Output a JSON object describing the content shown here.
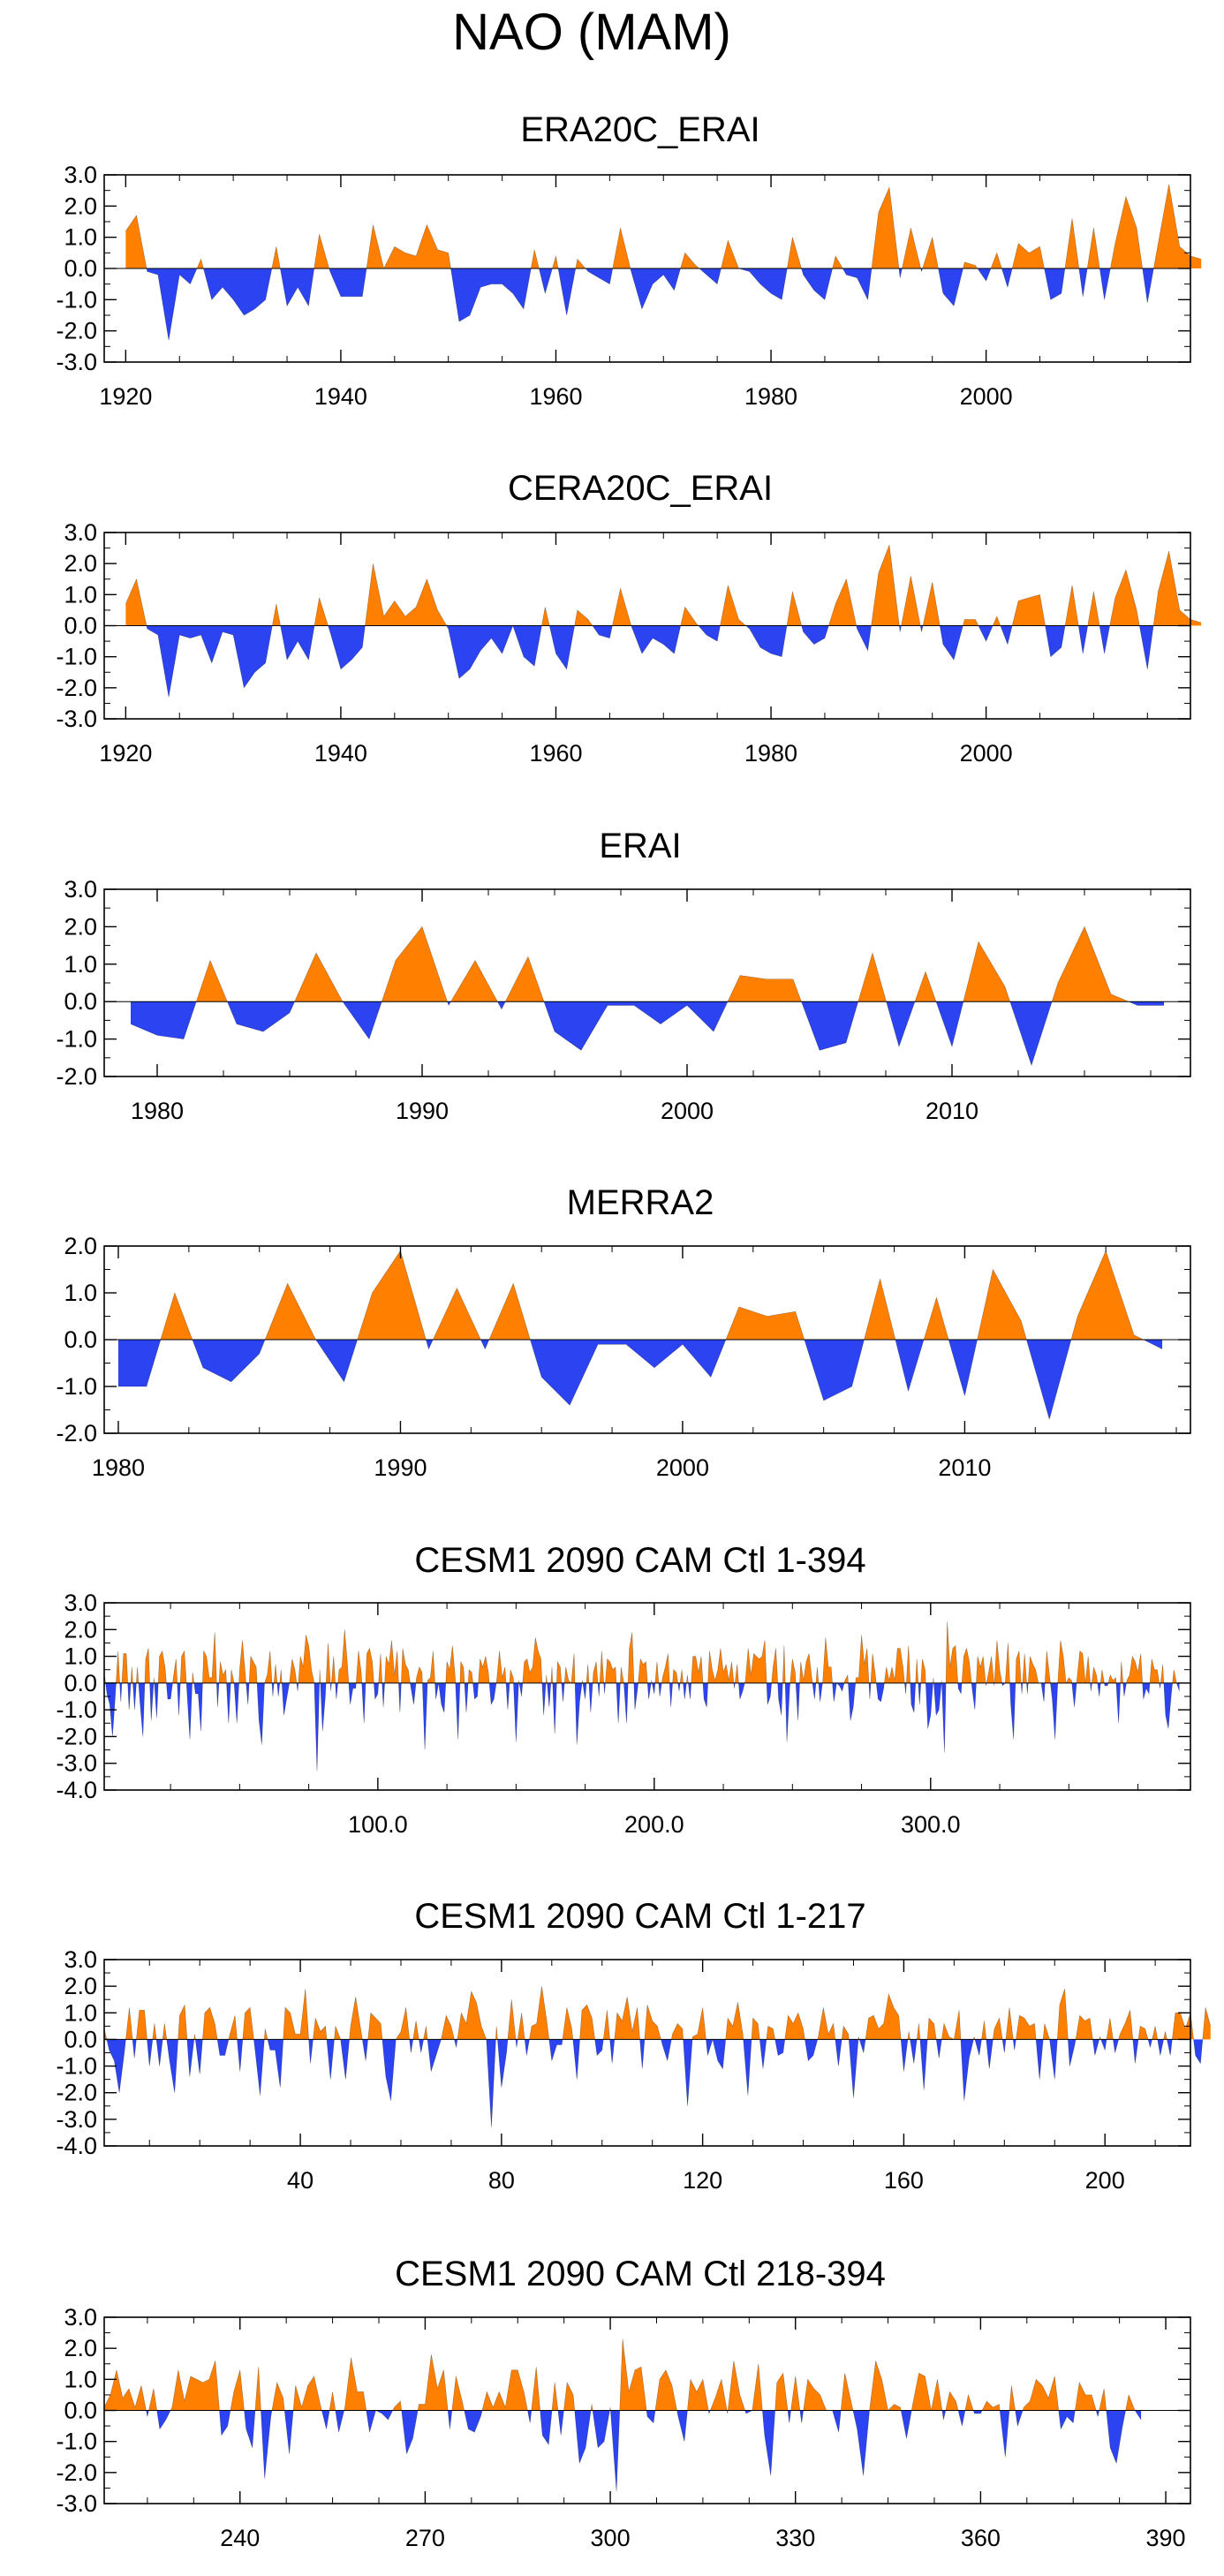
{
  "figure_title": "NAO (MAM)",
  "colors": {
    "positive": "#ff8000",
    "negative": "#2b43f0",
    "frame": "#000000"
  },
  "chart_data": [
    {
      "type": "area",
      "title": "ERA20C_ERAI",
      "xlim": [
        1918,
        2019
      ],
      "ylim": [
        -3.0,
        3.0
      ],
      "x_ticks": [
        1920,
        1940,
        1960,
        1980,
        2000
      ],
      "x_tick_labels": [
        "1920",
        "1940",
        "1960",
        "1980",
        "2000"
      ],
      "y_ticks": [
        3.0,
        2.0,
        1.0,
        0.0,
        -1.0,
        -2.0,
        -3.0
      ],
      "y_tick_labels": [
        "3.0",
        "2.0",
        "1.0",
        "0.0",
        "-1.0",
        "-2.0",
        "-3.0"
      ],
      "x_start": 1920,
      "x_step": 1,
      "values": [
        1.2,
        1.7,
        -0.1,
        -0.2,
        -2.3,
        -0.2,
        -0.5,
        0.3,
        -1.0,
        -0.6,
        -1.0,
        -1.5,
        -1.3,
        -1.0,
        0.7,
        -1.2,
        -0.6,
        -1.2,
        1.1,
        -0.1,
        -0.9,
        -0.9,
        -0.9,
        1.4,
        0.0,
        0.7,
        0.5,
        0.4,
        1.4,
        0.6,
        0.5,
        -1.7,
        -1.5,
        -0.6,
        -0.5,
        -0.5,
        -0.8,
        -1.3,
        0.6,
        -0.8,
        0.4,
        -1.5,
        0.3,
        -0.1,
        -0.3,
        -0.5,
        1.3,
        -0.1,
        -1.3,
        -0.5,
        -0.2,
        -0.7,
        0.5,
        0.1,
        -0.2,
        -0.5,
        0.9,
        0.0,
        -0.1,
        -0.5,
        -0.8,
        -1.0,
        1.0,
        -0.2,
        -0.7,
        -1.0,
        0.4,
        -0.2,
        -0.3,
        -1.0,
        1.8,
        2.6,
        -0.3,
        1.3,
        -0.1,
        1.0,
        -0.8,
        -1.2,
        0.2,
        0.1,
        -0.4,
        0.5,
        -0.6,
        0.8,
        0.5,
        0.7,
        -1.0,
        -0.8,
        1.6,
        -0.9,
        1.3,
        -1.0,
        0.8,
        2.3,
        1.3,
        -1.1,
        0.8,
        2.7,
        0.7,
        0.4,
        0.3
      ]
    },
    {
      "type": "area",
      "title": "CERA20C_ERAI",
      "xlim": [
        1918,
        2019
      ],
      "ylim": [
        -3.0,
        3.0
      ],
      "x_ticks": [
        1920,
        1940,
        1960,
        1980,
        2000
      ],
      "x_tick_labels": [
        "1920",
        "1940",
        "1960",
        "1980",
        "2000"
      ],
      "y_ticks": [
        3.0,
        2.0,
        1.0,
        0.0,
        -1.0,
        -2.0,
        -3.0
      ],
      "y_tick_labels": [
        "3.0",
        "2.0",
        "1.0",
        "0.0",
        "-1.0",
        "-2.0",
        "-3.0"
      ],
      "x_start": 1920,
      "x_step": 1,
      "values": [
        0.7,
        1.5,
        -0.1,
        -0.3,
        -2.3,
        -0.3,
        -0.4,
        -0.3,
        -1.2,
        -0.2,
        -0.3,
        -2.0,
        -1.5,
        -1.2,
        0.7,
        -1.1,
        -0.5,
        -1.1,
        0.9,
        -0.2,
        -1.4,
        -1.1,
        -0.7,
        2.0,
        0.3,
        0.8,
        0.3,
        0.6,
        1.5,
        0.5,
        -0.1,
        -1.7,
        -1.4,
        -0.8,
        -0.4,
        -0.9,
        0.0,
        -1.0,
        -1.3,
        0.6,
        -0.9,
        -1.4,
        0.5,
        0.2,
        -0.3,
        -0.4,
        1.2,
        0.0,
        -0.9,
        -0.4,
        -0.6,
        -0.9,
        0.6,
        0.1,
        -0.3,
        -0.5,
        1.3,
        0.2,
        -0.1,
        -0.7,
        -0.9,
        -1.0,
        1.1,
        -0.2,
        -0.6,
        -0.4,
        0.7,
        1.5,
        -0.1,
        -0.8,
        1.7,
        2.6,
        -0.2,
        1.6,
        -0.2,
        1.4,
        -0.6,
        -1.1,
        0.2,
        0.2,
        -0.5,
        0.3,
        -0.6,
        0.8,
        0.9,
        1.0,
        -1.0,
        -0.7,
        1.3,
        -0.9,
        1.1,
        -0.9,
        0.9,
        1.8,
        0.5,
        -1.4,
        1.1,
        2.4,
        0.5,
        0.2,
        0.1
      ]
    },
    {
      "type": "area",
      "title": "ERAI",
      "xlim": [
        1978,
        2019
      ],
      "ylim": [
        -2.0,
        3.0
      ],
      "x_ticks": [
        1980,
        1990,
        2000,
        2010
      ],
      "x_tick_labels": [
        "1980",
        "1990",
        "2000",
        "2010"
      ],
      "y_ticks": [
        3.0,
        2.0,
        1.0,
        0.0,
        -1.0,
        -2.0
      ],
      "y_tick_labels": [
        "3.0",
        "2.0",
        "1.0",
        "0.0",
        "-1.0",
        "-2.0"
      ],
      "x_start": 1979,
      "x_step": 1,
      "values": [
        -0.6,
        -0.9,
        -1.0,
        1.1,
        -0.6,
        -0.8,
        -0.3,
        1.3,
        0.0,
        -1.0,
        1.1,
        2.0,
        -0.1,
        1.1,
        -0.2,
        1.2,
        -0.8,
        -1.3,
        -0.1,
        -0.1,
        -0.6,
        -0.1,
        -0.8,
        0.7,
        0.6,
        0.6,
        -1.3,
        -1.1,
        1.3,
        -1.2,
        0.8,
        -1.2,
        1.6,
        0.4,
        -1.7,
        0.5,
        2.0,
        0.2,
        -0.1,
        -0.1
      ]
    },
    {
      "type": "area",
      "title": "MERRA2",
      "xlim": [
        1979.5,
        2018
      ],
      "ylim": [
        -2.0,
        2.0
      ],
      "x_ticks": [
        1980,
        1990,
        2000,
        2010
      ],
      "x_tick_labels": [
        "1980",
        "1990",
        "2000",
        "2010"
      ],
      "y_ticks": [
        2.0,
        1.0,
        0.0,
        -1.0,
        -2.0
      ],
      "y_tick_labels": [
        "2.0",
        "1.0",
        "0.0",
        "-1.0",
        "-2.0"
      ],
      "x_start": 1980,
      "x_step": 1,
      "values": [
        -1.0,
        -1.0,
        1.0,
        -0.6,
        -0.9,
        -0.3,
        1.2,
        0.0,
        -0.9,
        1.0,
        1.9,
        -0.2,
        1.1,
        -0.2,
        1.2,
        -0.8,
        -1.4,
        -0.1,
        -0.1,
        -0.6,
        -0.1,
        -0.8,
        0.7,
        0.5,
        0.6,
        -1.3,
        -1.0,
        1.3,
        -1.1,
        0.9,
        -1.2,
        1.5,
        0.4,
        -1.7,
        0.5,
        1.9,
        0.1,
        -0.2
      ]
    },
    {
      "type": "area",
      "title": "CESM1 2090 CAM Ctl 1-394",
      "xlim": [
        1,
        394
      ],
      "ylim": [
        -4.0,
        3.0
      ],
      "x_ticks": [
        100,
        200,
        300
      ],
      "x_tick_labels": [
        "100.0",
        "200.0",
        "300.0"
      ],
      "y_ticks": [
        3.0,
        2.0,
        1.0,
        0.0,
        -1.0,
        -2.0,
        -3.0,
        -4.0
      ],
      "y_tick_labels": [
        "3.0",
        "2.0",
        "1.0",
        "0.0",
        "-1.0",
        "-2.0",
        "-3.0",
        "-4.0"
      ],
      "x_start": 1,
      "x_step": 1,
      "values": [
        0.4,
        -0.4,
        -0.8,
        -2.0,
        -0.5,
        1.2,
        -0.7,
        1.1,
        1.1,
        -1.0,
        0.6,
        -1.0,
        0.6,
        -0.8,
        -2.0,
        0.9,
        1.3,
        -1.4,
        0.2,
        -1.3,
        1.0,
        1.2,
        0.6,
        -0.6,
        -0.6,
        0.2,
        0.9,
        -1.2,
        1.0,
        1.2,
        -0.4,
        -2.1,
        0.4,
        -0.4,
        -0.4,
        -1.8,
        1.2,
        1.0,
        0.2,
        0.2,
        1.9,
        -0.9,
        0.8,
        0.3,
        0.5,
        -1.5,
        0.5,
        0.0,
        -1.5,
        0.5,
        1.6,
        0.4,
        -0.8,
        1.0,
        0.8,
        0.6,
        -1.4,
        -2.3,
        0.0,
        0.3,
        1.2,
        -0.5,
        0.7,
        -0.5,
        0.5,
        -1.2,
        -0.6,
        0.0,
        0.9,
        0.5,
        -0.3,
        1.0,
        0.6,
        1.8,
        1.4,
        0.5,
        0.0,
        -3.3,
        0.5,
        -1.8,
        -0.5,
        1.5,
        -0.3,
        1.0,
        -0.6,
        0.5,
        0.6,
        2.0,
        0.7,
        -0.8,
        -0.2,
        -0.2,
        1.2,
        0.4,
        -1.5,
        1.1,
        1.3,
        0.8,
        -0.6,
        -0.4,
        1.1,
        -0.9,
        1.0,
        0.7,
        1.6,
        0.3,
        1.2,
        -1.1,
        1.3,
        0.7,
        0.5,
        -0.2,
        -0.8,
        0.2,
        0.6,
        0.4,
        -2.5,
        0.1,
        0.2,
        1.2,
        -0.6,
        0.0,
        -0.8,
        -1.1,
        0.8,
        0.5,
        1.4,
        0.2,
        -2.1,
        0.8,
        0.6,
        -1.1,
        0.5,
        0.4,
        -0.6,
        -0.5,
        0.9,
        0.6,
        1.0,
        0.4,
        -0.8,
        -0.6,
        0.1,
        1.2,
        0.2,
        0.6,
        -1.0,
        0.5,
        0.2,
        -2.2,
        0.1,
        -0.5,
        0.8,
        0.9,
        0.4,
        0.6,
        1.7,
        1.2,
        0.9,
        -1.2,
        0.3,
        -0.9,
        0.6,
        -1.9,
        0.8,
        0.6,
        -0.7,
        0.6,
        0.1,
        0.0,
        1.1,
        -2.3,
        -0.7,
        0.1,
        -0.6,
        0.7,
        -1.1,
        0.4,
        0.8,
        -0.5,
        1.2,
        -0.4,
        0.9,
        0.8,
        0.5,
        0.6,
        -1.5,
        0.6,
        0.0,
        -1.5,
        1.3,
        1.9,
        -1.0,
        -0.2,
        0.9,
        0.7,
        0.8,
        -0.6,
        0.1,
        -0.4,
        0.8,
        -0.5,
        0.2,
        0.6,
        1.1,
        -0.9,
        0.5,
        0.4,
        -0.3,
        0.5,
        -0.6,
        0.3,
        -0.6,
        1.0,
        1.0,
        0.4,
        1.0,
        -0.6,
        -0.9,
        1.2,
        0.5,
        0.1,
        0.5,
        1.3,
        0.4,
        0.7,
        0.1,
        0.8,
        -0.2,
        0.7,
        -0.6,
        -0.3,
        0.1,
        1.3,
        0.3,
        1.1,
        1.0,
        0.9,
        1.0,
        1.6,
        -0.8,
        -0.5,
        0.6,
        1.3,
        -0.6,
        -1.2,
        1.4,
        -2.2,
        -0.2,
        0.9,
        0.4,
        -1.4,
        0.8,
        0.1,
        0.8,
        1.1,
        0.2,
        -0.6,
        0.6,
        -0.7,
        0.1,
        1.7,
        0.6,
        0.6,
        -0.7,
        0.0,
        -0.1,
        -0.3,
        0.1,
        0.3,
        -1.4,
        -0.9,
        0.2,
        0.2,
        1.8,
        0.7,
        1.3,
        -0.6,
        1.1,
        0.3,
        -0.6,
        -0.7,
        -0.2,
        0.6,
        0.1,
        0.6,
        0.1,
        1.3,
        1.3,
        0.6,
        -0.4,
        1.4,
        -0.8,
        -1.1,
        0.9,
        -0.8,
        0.9,
        0.5,
        -1.7,
        -1.2,
        0.2,
        -1.2,
        -1.0,
        0.1,
        -2.6,
        2.3,
        0.6,
        1.3,
        1.4,
        -0.2,
        -0.4,
        1.0,
        1.3,
        0.8,
        -0.2,
        -1.0,
        1.0,
        0.6,
        1.0,
        -0.1,
        0.4,
        1.0,
        -0.1,
        1.6,
        0.5,
        -0.1,
        0.0,
        1.5,
        -0.8,
        -2.1,
        0.9,
        1.2,
        -0.4,
        1.1,
        -0.4,
        1.0,
        0.7,
        0.5,
        0.0,
        0.0,
        -0.7,
        1.2,
        0.3,
        -0.6,
        -2.1,
        0.0,
        1.6,
        1.0,
        0.0,
        0.2,
        0.1,
        -0.9,
        0.2,
        1.2,
        1.1,
        0.0,
        1.0,
        -0.3,
        0.6,
        0.3,
        -0.5,
        0.5,
        -0.1,
        -0.1,
        0.3,
        0.1,
        0.2,
        -1.5,
        0.8,
        -0.5,
        0.1,
        0.3,
        1.0,
        0.8,
        0.4,
        1.1,
        -0.6,
        -0.2,
        -0.4,
        0.9,
        0.5,
        0.5,
        -0.2,
        0.7,
        -1.2,
        -1.7,
        -0.5,
        0.5,
        0.0,
        -0.3
      ]
    },
    {
      "type": "area",
      "title": "CESM1 2090 CAM Ctl 1-217",
      "xlim": [
        1,
        217
      ],
      "ylim": [
        -4.0,
        3.0
      ],
      "x_ticks": [
        40,
        80,
        120,
        160,
        200
      ],
      "x_tick_labels": [
        "40",
        "80",
        "120",
        "160",
        "200"
      ],
      "y_ticks": [
        3.0,
        2.0,
        1.0,
        0.0,
        -1.0,
        -2.0,
        -3.0,
        -4.0
      ],
      "y_tick_labels": [
        "3.0",
        "2.0",
        "1.0",
        "0.0",
        "-1.0",
        "-2.0",
        "-3.0",
        "-4.0"
      ],
      "x_start": 1,
      "x_step": 1,
      "values": [
        0.4,
        -0.4,
        -0.8,
        -2.0,
        -0.5,
        1.2,
        -0.7,
        1.1,
        1.1,
        -1.0,
        0.6,
        -1.0,
        0.6,
        -0.8,
        -2.0,
        0.9,
        1.3,
        -1.4,
        0.2,
        -1.3,
        1.0,
        1.2,
        0.6,
        -0.6,
        -0.6,
        0.2,
        0.9,
        -1.2,
        1.0,
        1.2,
        -0.4,
        -2.1,
        0.4,
        -0.4,
        -0.4,
        -1.8,
        1.2,
        1.0,
        0.2,
        0.2,
        1.9,
        -0.9,
        0.8,
        0.3,
        0.5,
        -1.5,
        0.5,
        0.0,
        -1.5,
        0.5,
        1.6,
        0.4,
        -0.8,
        1.0,
        0.8,
        0.6,
        -1.4,
        -2.3,
        0.0,
        0.3,
        1.2,
        -0.5,
        0.7,
        -0.5,
        0.5,
        -1.2,
        -0.6,
        0.0,
        0.9,
        0.5,
        -0.3,
        1.0,
        0.6,
        1.8,
        1.4,
        0.5,
        0.0,
        -3.3,
        0.5,
        -1.8,
        -0.5,
        1.5,
        -0.3,
        1.0,
        -0.6,
        0.5,
        0.6,
        2.0,
        0.7,
        -0.8,
        -0.2,
        -0.2,
        1.2,
        0.4,
        -1.5,
        1.1,
        1.3,
        0.8,
        -0.6,
        -0.4,
        1.1,
        -0.9,
        1.0,
        0.7,
        1.6,
        0.3,
        1.2,
        -1.1,
        1.3,
        0.7,
        0.5,
        -0.2,
        -0.8,
        0.2,
        0.6,
        0.4,
        -2.5,
        0.1,
        0.2,
        1.2,
        -0.6,
        0.0,
        -0.8,
        -1.1,
        0.8,
        0.5,
        1.4,
        0.2,
        -2.1,
        0.8,
        0.6,
        -1.1,
        0.5,
        0.4,
        -0.6,
        -0.5,
        0.9,
        0.6,
        1.0,
        0.4,
        -0.8,
        -0.6,
        0.1,
        1.2,
        0.2,
        0.6,
        -1.0,
        0.5,
        0.2,
        -2.2,
        0.1,
        -0.5,
        0.8,
        0.9,
        0.4,
        0.6,
        1.7,
        1.2,
        0.9,
        -1.2,
        0.3,
        -0.9,
        0.6,
        -1.9,
        0.8,
        0.6,
        -0.7,
        0.6,
        0.1,
        0.0,
        1.1,
        -2.3,
        -0.7,
        0.1,
        -0.6,
        0.7,
        -1.1,
        0.4,
        0.8,
        -0.5,
        1.2,
        -0.4,
        0.9,
        0.8,
        0.5,
        0.6,
        -1.5,
        0.6,
        0.0,
        -1.5,
        1.3,
        1.9,
        -1.0,
        -0.2,
        0.9,
        0.7,
        0.8,
        -0.6,
        0.1,
        -0.4,
        0.8,
        -0.5,
        0.2,
        0.6,
        1.1,
        -0.9,
        0.5,
        0.4,
        -0.3,
        0.5,
        -0.6,
        0.3,
        -0.6,
        1.0,
        1.0,
        0.4,
        1.0,
        -0.6,
        -0.9,
        1.2,
        0.5
      ]
    },
    {
      "type": "area",
      "title": "CESM1 2090 CAM Ctl 218-394",
      "xlim": [
        218,
        394
      ],
      "ylim": [
        -3.0,
        3.0
      ],
      "x_ticks": [
        240,
        270,
        300,
        330,
        360,
        390
      ],
      "x_tick_labels": [
        "240",
        "270",
        "300",
        "330",
        "360",
        "390"
      ],
      "y_ticks": [
        3.0,
        2.0,
        1.0,
        0.0,
        -1.0,
        -2.0,
        -3.0
      ],
      "y_tick_labels": [
        "3.0",
        "2.0",
        "1.0",
        "0.0",
        "-1.0",
        "-2.0",
        "-3.0"
      ],
      "x_start": 218,
      "x_step": 1,
      "values": [
        0.1,
        0.5,
        1.3,
        0.4,
        0.7,
        0.1,
        0.8,
        -0.2,
        0.7,
        -0.6,
        -0.3,
        0.1,
        1.3,
        0.3,
        1.1,
        1.0,
        0.9,
        1.0,
        1.6,
        -0.8,
        -0.5,
        0.6,
        1.3,
        -0.6,
        -1.2,
        1.4,
        -2.2,
        -0.2,
        0.9,
        0.4,
        -1.4,
        0.8,
        0.1,
        0.8,
        1.1,
        0.2,
        -0.6,
        0.6,
        -0.7,
        0.1,
        1.7,
        0.6,
        0.6,
        -0.7,
        0.0,
        -0.1,
        -0.3,
        0.1,
        0.3,
        -1.4,
        -0.9,
        0.2,
        0.2,
        1.8,
        0.7,
        1.3,
        -0.6,
        1.1,
        0.3,
        -0.6,
        -0.7,
        -0.2,
        0.6,
        0.1,
        0.6,
        0.1,
        1.3,
        1.3,
        0.6,
        -0.4,
        1.4,
        -0.8,
        -1.1,
        0.9,
        -0.8,
        0.9,
        0.5,
        -1.7,
        -1.2,
        0.2,
        -1.2,
        -1.0,
        0.1,
        -2.6,
        2.3,
        0.6,
        1.3,
        1.4,
        -0.2,
        -0.4,
        1.0,
        1.3,
        0.8,
        -0.2,
        -1.0,
        1.0,
        0.6,
        1.0,
        -0.1,
        0.4,
        1.0,
        -0.1,
        1.6,
        0.5,
        -0.1,
        0.0,
        1.5,
        -0.8,
        -2.1,
        0.9,
        1.2,
        -0.4,
        1.1,
        -0.4,
        1.0,
        0.7,
        0.5,
        0.0,
        0.0,
        -0.7,
        1.2,
        0.3,
        -0.6,
        -2.1,
        0.0,
        1.6,
        1.0,
        0.0,
        0.2,
        0.1,
        -0.9,
        0.2,
        1.2,
        1.1,
        0.0,
        1.0,
        -0.3,
        0.6,
        0.3,
        -0.5,
        0.5,
        -0.1,
        -0.1,
        0.3,
        0.1,
        0.2,
        -1.5,
        0.8,
        -0.5,
        0.1,
        0.3,
        1.0,
        0.8,
        0.4,
        1.1,
        -0.6,
        -0.2,
        -0.4,
        0.9,
        0.5,
        0.5,
        -0.2,
        0.7,
        -1.2,
        -1.7,
        -0.5,
        0.5,
        0.0,
        -0.3
      ]
    }
  ]
}
